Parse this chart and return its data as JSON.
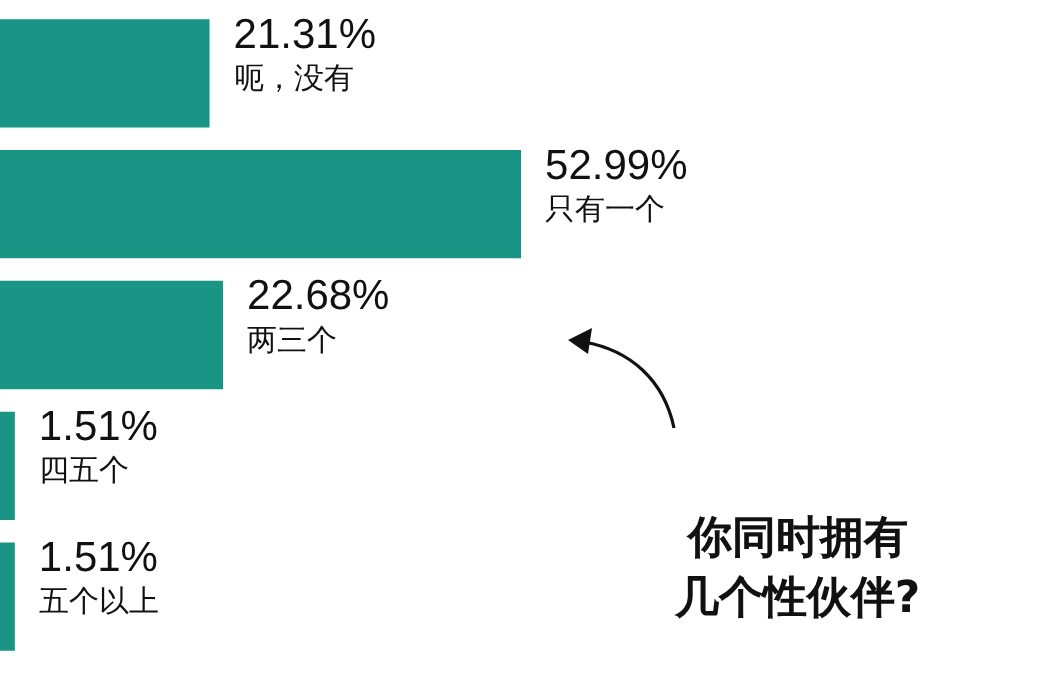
{
  "chart_data": {
    "type": "bar",
    "orientation": "horizontal",
    "categories": [
      "呃，没有",
      "只有一个",
      "两三个",
      "四五个",
      "五个以上"
    ],
    "values": [
      21.31,
      52.99,
      22.68,
      1.51,
      1.51
    ],
    "value_labels": [
      "21.31%",
      "52.99%",
      "22.68%",
      "1.51%",
      "1.51%"
    ],
    "color": "#1a9585",
    "tick_labels": false,
    "legend": false,
    "annotations": [
      "你同时拥有几个性伙伴?"
    ]
  }
}
